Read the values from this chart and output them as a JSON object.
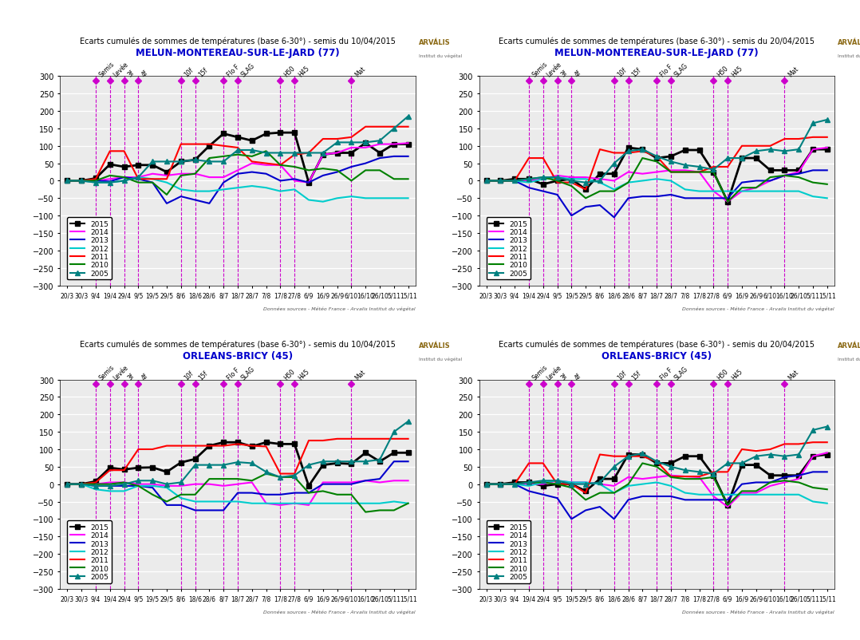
{
  "x_labels": [
    "20/3",
    "30/3",
    "9/4",
    "19/4",
    "29/4",
    "9/5",
    "19/5",
    "29/5",
    "8/6",
    "18/6",
    "28/6",
    "8/7",
    "18/7",
    "28/7",
    "7/8",
    "17/8",
    "27/8",
    "6/9",
    "16/9",
    "26/9",
    "6/10",
    "16/10",
    "26/10",
    "5/11",
    "15/11"
  ],
  "n_points": 25,
  "ylim": [
    -300,
    300
  ],
  "yticks": [
    -300,
    -250,
    -200,
    -150,
    -100,
    -50,
    0,
    50,
    100,
    150,
    200,
    250,
    300
  ],
  "stage_labels": [
    "Semis",
    "Levée",
    "3f",
    "4f",
    "10f",
    "15f",
    "Flo F",
    "SLAG",
    "H50",
    "H45",
    "Mat"
  ],
  "subplot_titles": [
    "Ecarts cumulés de sommes de températures (base 6-30°) - semis du 10/04/2015",
    "Ecarts cumulés de sommes de températures (base 6-30°) - semis du 20/04/2015",
    "Ecarts cumulés de sommes de températures (base 6-30°) - semis du 10/04/2015",
    "Ecarts cumulés de sommes de températures (base 6-30°) - semis du 20/04/2015"
  ],
  "location_titles": [
    "MELUN-MONTEREAU-SUR-LE-JARD (77)",
    "MELUN-MONTEREAU-SUR-LE-JARD (77)",
    "ORLEANS-BRICY (45)",
    "ORLEANS-BRICY (45)"
  ],
  "series_years": [
    "2015",
    "2014",
    "2013",
    "2012",
    "2011",
    "2010",
    "2005"
  ],
  "series_colors": [
    "#000000",
    "#ff00ff",
    "#0000cc",
    "#00cccc",
    "#ff0000",
    "#008000",
    "#008080"
  ],
  "series_markers": [
    "s",
    null,
    null,
    null,
    null,
    null,
    "^"
  ],
  "series_lw": [
    2.0,
    1.5,
    1.5,
    1.5,
    1.5,
    1.5,
    1.5
  ],
  "vline_color": "#cc00cc",
  "footer_text": "Données sources - Météo France - Arvalis Institut du végétal",
  "data": {
    "TL_10": {
      "stage_x": [
        2,
        3,
        4,
        5,
        8,
        9,
        11,
        12,
        15,
        16,
        20
      ],
      "2015": [
        0,
        0,
        7,
        47,
        40,
        45,
        45,
        25,
        55,
        60,
        100,
        135,
        125,
        115,
        135,
        138,
        138,
        -5,
        75,
        80,
        80,
        108,
        80,
        105,
        105
      ],
      "2014": [
        0,
        0,
        0,
        5,
        10,
        10,
        20,
        15,
        20,
        20,
        10,
        10,
        30,
        50,
        45,
        45,
        0,
        -5,
        75,
        80,
        95,
        95,
        105,
        105,
        108
      ],
      "2013": [
        0,
        0,
        0,
        -2,
        10,
        5,
        -5,
        -65,
        -45,
        -55,
        -65,
        -5,
        20,
        25,
        20,
        0,
        5,
        -5,
        15,
        25,
        40,
        50,
        65,
        70,
        70
      ],
      "2012": [
        0,
        0,
        -5,
        -5,
        0,
        10,
        5,
        -5,
        -25,
        -30,
        -30,
        -25,
        -20,
        -15,
        -20,
        -30,
        -25,
        -55,
        -60,
        -50,
        -45,
        -50,
        -50,
        -50,
        -50
      ],
      "2011": [
        0,
        0,
        5,
        85,
        85,
        5,
        5,
        5,
        105,
        105,
        105,
        100,
        95,
        55,
        50,
        45,
        75,
        80,
        120,
        120,
        125,
        155,
        155,
        155,
        155
      ],
      "2010": [
        0,
        0,
        0,
        15,
        10,
        -5,
        -5,
        -40,
        15,
        20,
        65,
        70,
        75,
        70,
        85,
        45,
        40,
        30,
        35,
        30,
        0,
        30,
        30,
        5,
        5
      ],
      "2005": [
        0,
        0,
        -5,
        -5,
        0,
        10,
        55,
        55,
        55,
        60,
        55,
        55,
        88,
        88,
        80,
        80,
        80,
        80,
        80,
        110,
        110,
        110,
        115,
        150,
        185
      ]
    },
    "TL_20": {
      "stage_x": [
        3,
        4,
        5,
        6,
        9,
        10,
        12,
        13,
        16,
        17,
        21
      ],
      "2015": [
        0,
        0,
        5,
        5,
        -10,
        0,
        5,
        -25,
        20,
        20,
        95,
        90,
        65,
        70,
        88,
        88,
        25,
        -60,
        65,
        65,
        30,
        30,
        30,
        90,
        90
      ],
      "2014": [
        0,
        0,
        0,
        0,
        5,
        15,
        10,
        10,
        5,
        0,
        25,
        20,
        25,
        30,
        30,
        25,
        -30,
        -60,
        -30,
        -20,
        0,
        15,
        25,
        90,
        95
      ],
      "2013": [
        0,
        0,
        0,
        -20,
        -30,
        -40,
        -100,
        -75,
        -70,
        -105,
        -50,
        -45,
        -45,
        -40,
        -50,
        -50,
        -50,
        -50,
        -5,
        0,
        0,
        15,
        20,
        30,
        30
      ],
      "2012": [
        0,
        0,
        0,
        -5,
        5,
        10,
        5,
        5,
        -5,
        -25,
        -5,
        0,
        5,
        0,
        -25,
        -30,
        -30,
        -30,
        -30,
        -30,
        -30,
        -30,
        -30,
        -45,
        -50
      ],
      "2011": [
        0,
        0,
        0,
        65,
        65,
        -5,
        -5,
        -25,
        90,
        80,
        80,
        85,
        70,
        25,
        25,
        25,
        40,
        40,
        100,
        100,
        100,
        120,
        120,
        125,
        125
      ],
      "2010": [
        0,
        0,
        0,
        5,
        10,
        0,
        -15,
        -50,
        -30,
        -30,
        -5,
        65,
        55,
        25,
        25,
        25,
        25,
        -60,
        -20,
        -20,
        10,
        15,
        10,
        -5,
        -10
      ],
      "2005": [
        0,
        0,
        0,
        5,
        10,
        10,
        0,
        -5,
        0,
        50,
        85,
        90,
        70,
        55,
        45,
        40,
        32,
        65,
        65,
        85,
        90,
        85,
        90,
        165,
        175
      ]
    },
    "OB_10": {
      "stage_x": [
        2,
        3,
        4,
        5,
        8,
        9,
        11,
        12,
        15,
        16,
        20
      ],
      "2015": [
        0,
        0,
        8,
        47,
        42,
        47,
        48,
        35,
        62,
        72,
        110,
        120,
        120,
        108,
        120,
        115,
        115,
        -5,
        55,
        60,
        58,
        90,
        65,
        90,
        90
      ],
      "2014": [
        0,
        0,
        0,
        5,
        5,
        0,
        0,
        -5,
        -5,
        0,
        0,
        -5,
        0,
        5,
        -55,
        -60,
        -55,
        -60,
        5,
        5,
        5,
        10,
        5,
        10,
        10
      ],
      "2013": [
        0,
        0,
        -5,
        -5,
        -5,
        -5,
        -10,
        -60,
        -60,
        -75,
        -75,
        -75,
        -25,
        -25,
        -30,
        -30,
        -25,
        -25,
        0,
        0,
        0,
        10,
        15,
        65,
        65
      ],
      "2012": [
        0,
        0,
        -15,
        -20,
        -20,
        -5,
        -5,
        -10,
        -40,
        -50,
        -50,
        -50,
        -50,
        -55,
        -55,
        -55,
        -55,
        -55,
        -55,
        -55,
        -55,
        -55,
        -55,
        -50,
        -55
      ],
      "2011": [
        0,
        0,
        5,
        40,
        40,
        100,
        100,
        110,
        110,
        110,
        110,
        110,
        115,
        110,
        108,
        30,
        30,
        125,
        125,
        130,
        130,
        130,
        130,
        130,
        130
      ],
      "2010": [
        0,
        0,
        0,
        0,
        5,
        -5,
        -30,
        -50,
        -30,
        -30,
        15,
        15,
        15,
        10,
        30,
        20,
        20,
        -25,
        -20,
        -30,
        -30,
        -80,
        -75,
        -75,
        -55
      ],
      "2005": [
        0,
        0,
        -5,
        -5,
        0,
        10,
        10,
        0,
        5,
        55,
        55,
        55,
        63,
        60,
        35,
        20,
        25,
        55,
        65,
        65,
        65,
        65,
        70,
        150,
        180
      ]
    },
    "OB_20": {
      "stage_x": [
        3,
        4,
        5,
        6,
        9,
        10,
        12,
        13,
        16,
        17,
        21
      ],
      "2015": [
        0,
        0,
        5,
        5,
        -5,
        0,
        0,
        -20,
        15,
        15,
        85,
        85,
        60,
        60,
        80,
        80,
        25,
        -60,
        55,
        55,
        25,
        25,
        25,
        80,
        85
      ],
      "2014": [
        0,
        0,
        0,
        0,
        0,
        10,
        5,
        5,
        0,
        -5,
        20,
        15,
        20,
        25,
        22,
        20,
        -35,
        -65,
        -25,
        -25,
        -5,
        5,
        15,
        80,
        90
      ],
      "2013": [
        0,
        0,
        0,
        -20,
        -30,
        -40,
        -100,
        -75,
        -65,
        -100,
        -45,
        -35,
        -35,
        -35,
        -45,
        -45,
        -45,
        -45,
        0,
        5,
        5,
        20,
        25,
        35,
        35
      ],
      "2012": [
        0,
        0,
        0,
        -5,
        5,
        10,
        5,
        5,
        0,
        -25,
        -5,
        0,
        5,
        -5,
        -25,
        -30,
        -30,
        -30,
        -30,
        -30,
        -30,
        -30,
        -30,
        -50,
        -55
      ],
      "2011": [
        0,
        0,
        0,
        60,
        60,
        0,
        0,
        -25,
        85,
        80,
        80,
        80,
        65,
        22,
        22,
        22,
        35,
        35,
        100,
        95,
        100,
        115,
        115,
        120,
        120
      ],
      "2010": [
        0,
        0,
        0,
        5,
        5,
        0,
        -10,
        -45,
        -25,
        -25,
        0,
        60,
        50,
        20,
        15,
        15,
        20,
        -60,
        -20,
        -20,
        5,
        10,
        5,
        -10,
        -15
      ],
      "2005": [
        0,
        0,
        0,
        5,
        10,
        10,
        0,
        0,
        5,
        50,
        80,
        88,
        65,
        50,
        40,
        35,
        30,
        60,
        60,
        80,
        85,
        80,
        85,
        155,
        165
      ]
    }
  }
}
